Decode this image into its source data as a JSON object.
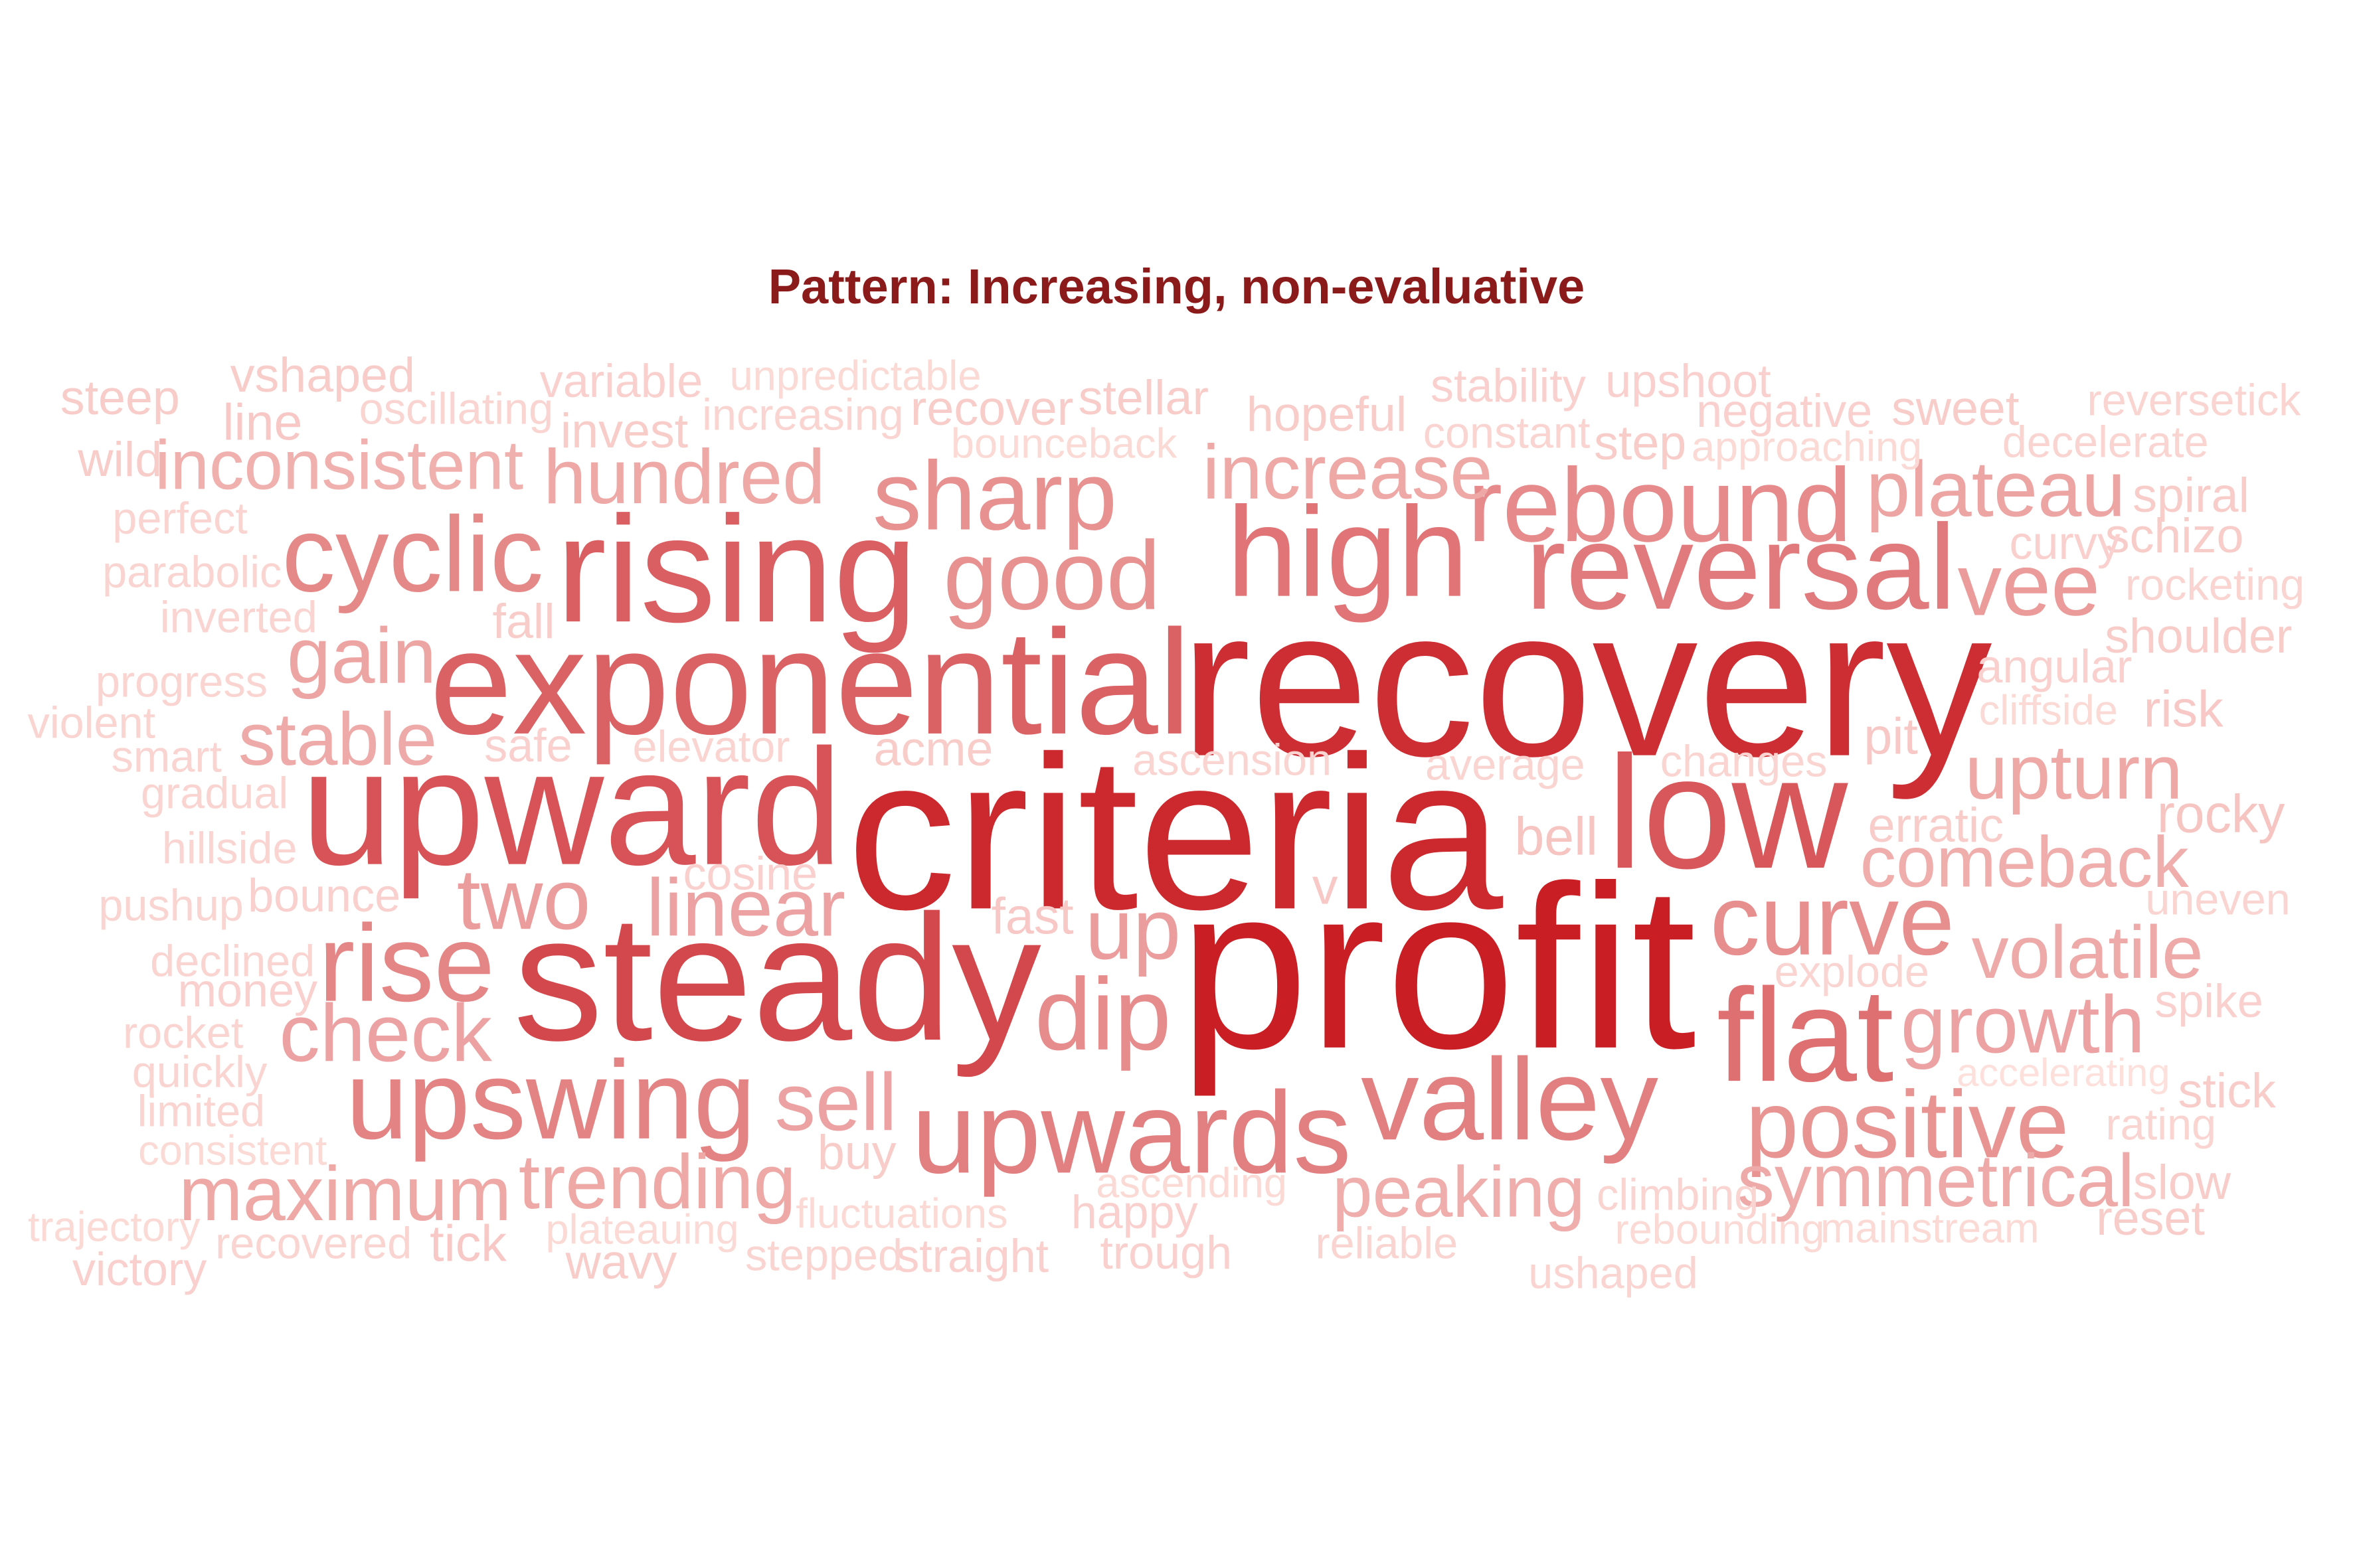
{
  "chart_data": {
    "type": "wordcloud",
    "title": "Pattern: Increasing, non-evaluative",
    "colors": {
      "title": "#8b1a1a",
      "scale_low": "#fde0dc",
      "scale_high": "#c81e24"
    },
    "words": [
      {
        "text": "profit",
        "weight": 100
      },
      {
        "text": "criteria",
        "weight": 94
      },
      {
        "text": "recovery",
        "weight": 91
      },
      {
        "text": "steady",
        "weight": 77
      },
      {
        "text": "upward",
        "weight": 71
      },
      {
        "text": "low",
        "weight": 69
      },
      {
        "text": "rising",
        "weight": 65
      },
      {
        "text": "exponential",
        "weight": 64
      },
      {
        "text": "flat",
        "weight": 57
      },
      {
        "text": "high",
        "weight": 55
      },
      {
        "text": "reversal",
        "weight": 52
      },
      {
        "text": "upwards",
        "weight": 50
      },
      {
        "text": "valley",
        "weight": 50
      },
      {
        "text": "upswing",
        "weight": 48
      },
      {
        "text": "rise",
        "weight": 47
      },
      {
        "text": "cyclic",
        "weight": 46
      },
      {
        "text": "rebound",
        "weight": 45
      },
      {
        "text": "dip",
        "weight": 44
      },
      {
        "text": "curve",
        "weight": 43
      },
      {
        "text": "good",
        "weight": 42
      },
      {
        "text": "sharp",
        "weight": 42
      },
      {
        "text": "positive",
        "weight": 41
      },
      {
        "text": "vee",
        "weight": 38
      },
      {
        "text": "up",
        "weight": 37
      },
      {
        "text": "two",
        "weight": 37
      },
      {
        "text": "linear",
        "weight": 35
      },
      {
        "text": "growth",
        "weight": 35
      },
      {
        "text": "check",
        "weight": 35
      },
      {
        "text": "sell",
        "weight": 35
      },
      {
        "text": "gain",
        "weight": 34
      },
      {
        "text": "plateau",
        "weight": 34
      },
      {
        "text": "upturn",
        "weight": 33
      },
      {
        "text": "hundred",
        "weight": 33
      },
      {
        "text": "trending",
        "weight": 33
      },
      {
        "text": "increase",
        "weight": 33
      },
      {
        "text": "maximum",
        "weight": 33
      },
      {
        "text": "symmetrical",
        "weight": 32
      },
      {
        "text": "stable",
        "weight": 32
      },
      {
        "text": "volatile",
        "weight": 32
      },
      {
        "text": "comeback",
        "weight": 31
      },
      {
        "text": "peaking",
        "weight": 31
      },
      {
        "text": "inconsistent",
        "weight": 30
      },
      {
        "text": "rocky",
        "weight": 23
      },
      {
        "text": "bell",
        "weight": 23
      },
      {
        "text": "risk",
        "weight": 22
      },
      {
        "text": "pit",
        "weight": 22
      },
      {
        "text": "fast",
        "weight": 22
      },
      {
        "text": "v",
        "weight": 22
      },
      {
        "text": "tick",
        "weight": 22
      },
      {
        "text": "line",
        "weight": 22
      },
      {
        "text": "spiral",
        "weight": 21
      },
      {
        "text": "fall",
        "weight": 21
      },
      {
        "text": "wavy",
        "weight": 21
      },
      {
        "text": "acme",
        "weight": 21
      },
      {
        "text": "buy",
        "weight": 21
      },
      {
        "text": "schizo",
        "weight": 21
      },
      {
        "text": "vshaped",
        "weight": 21
      },
      {
        "text": "hopeful",
        "weight": 21
      },
      {
        "text": "recover",
        "weight": 21
      },
      {
        "text": "step",
        "weight": 21
      },
      {
        "text": "steep",
        "weight": 21
      },
      {
        "text": "stellar",
        "weight": 21
      },
      {
        "text": "slow",
        "weight": 21
      },
      {
        "text": "stick",
        "weight": 21
      },
      {
        "text": "sweet",
        "weight": 21
      },
      {
        "text": "wild",
        "weight": 21
      },
      {
        "text": "invest",
        "weight": 21
      },
      {
        "text": "reset",
        "weight": 21
      },
      {
        "text": "erratic",
        "weight": 21
      },
      {
        "text": "shoulder",
        "weight": 21
      },
      {
        "text": "bounce",
        "weight": 20
      },
      {
        "text": "angular",
        "weight": 20
      },
      {
        "text": "cosine",
        "weight": 20
      },
      {
        "text": "safe",
        "weight": 20
      },
      {
        "text": "variable",
        "weight": 20
      },
      {
        "text": "money",
        "weight": 20
      },
      {
        "text": "stability",
        "weight": 20
      },
      {
        "text": "straight",
        "weight": 20
      },
      {
        "text": "trough",
        "weight": 20
      },
      {
        "text": "upshoot",
        "weight": 20
      },
      {
        "text": "negative",
        "weight": 20
      },
      {
        "text": "curvy",
        "weight": 20
      },
      {
        "text": "happy",
        "weight": 20
      },
      {
        "text": "victory",
        "weight": 20
      },
      {
        "text": "spike",
        "weight": 20
      },
      {
        "text": "reversetick",
        "weight": 19
      },
      {
        "text": "ushaped",
        "weight": 19
      },
      {
        "text": "oscillating",
        "weight": 19
      },
      {
        "text": "increasing",
        "weight": 19
      },
      {
        "text": "pushup",
        "weight": 19
      },
      {
        "text": "rocket",
        "weight": 19
      },
      {
        "text": "violent",
        "weight": 19
      },
      {
        "text": "progress",
        "weight": 19
      },
      {
        "text": "constant",
        "weight": 19
      },
      {
        "text": "perfect",
        "weight": 19
      },
      {
        "text": "uneven",
        "weight": 19
      },
      {
        "text": "rocketing",
        "weight": 19
      },
      {
        "text": "stepped",
        "weight": 19
      },
      {
        "text": "elevator",
        "weight": 19
      },
      {
        "text": "ascension",
        "weight": 19
      },
      {
        "text": "declined",
        "weight": 19
      },
      {
        "text": "smart",
        "weight": 19
      },
      {
        "text": "explode",
        "weight": 19
      },
      {
        "text": "limited",
        "weight": 19
      },
      {
        "text": "average",
        "weight": 19
      },
      {
        "text": "inverted",
        "weight": 19
      },
      {
        "text": "quickly",
        "weight": 19
      },
      {
        "text": "rating",
        "weight": 19
      },
      {
        "text": "recovered",
        "weight": 19
      },
      {
        "text": "reliable",
        "weight": 19
      },
      {
        "text": "decelerate",
        "weight": 19
      },
      {
        "text": "climbing",
        "weight": 19
      },
      {
        "text": "parabolic",
        "weight": 19
      },
      {
        "text": "changes",
        "weight": 19
      },
      {
        "text": "gradual",
        "weight": 19
      },
      {
        "text": "hillside",
        "weight": 19
      },
      {
        "text": "unpredictable",
        "weight": 18
      },
      {
        "text": "trajectory",
        "weight": 18
      },
      {
        "text": "consistent",
        "weight": 18
      },
      {
        "text": "fluctuations",
        "weight": 18
      },
      {
        "text": "plateauing",
        "weight": 18
      },
      {
        "text": "ascending",
        "weight": 18
      },
      {
        "text": "cliffside",
        "weight": 18
      },
      {
        "text": "mainstream",
        "weight": 18
      },
      {
        "text": "bounceback",
        "weight": 18
      },
      {
        "text": "approaching",
        "weight": 18
      },
      {
        "text": "rebounding",
        "weight": 18
      },
      {
        "text": "accelerating",
        "weight": 17
      }
    ]
  }
}
